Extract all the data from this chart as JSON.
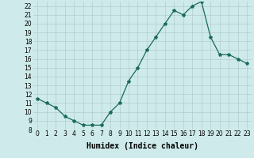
{
  "x": [
    0,
    1,
    2,
    3,
    4,
    5,
    6,
    7,
    8,
    9,
    10,
    11,
    12,
    13,
    14,
    15,
    16,
    17,
    18,
    19,
    20,
    21,
    22,
    23
  ],
  "y": [
    11.5,
    11.0,
    10.5,
    9.5,
    9.0,
    8.5,
    8.5,
    8.5,
    10.0,
    11.0,
    13.5,
    15.0,
    17.0,
    18.5,
    20.0,
    21.5,
    21.0,
    22.0,
    22.5,
    18.5,
    16.5,
    16.5,
    16.0,
    15.5
  ],
  "line_color": "#1a6b5a",
  "marker": "*",
  "marker_size": 3,
  "bg_color": "#ceeaea",
  "grid_color": "#b0cccc",
  "xlabel": "Humidex (Indice chaleur)",
  "xlim": [
    -0.5,
    23.5
  ],
  "ylim": [
    8,
    22.5
  ],
  "yticks": [
    8,
    9,
    10,
    11,
    12,
    13,
    14,
    15,
    16,
    17,
    18,
    19,
    20,
    21,
    22
  ],
  "xticks": [
    0,
    1,
    2,
    3,
    4,
    5,
    6,
    7,
    8,
    9,
    10,
    11,
    12,
    13,
    14,
    15,
    16,
    17,
    18,
    19,
    20,
    21,
    22,
    23
  ],
  "tick_fontsize": 5.5,
  "xlabel_fontsize": 7,
  "line_width": 0.9
}
